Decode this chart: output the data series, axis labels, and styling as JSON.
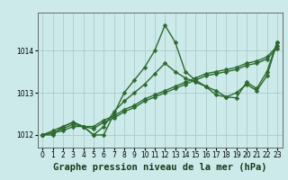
{
  "xlabel_label": "Graphe pression niveau de la mer (hPa)",
  "bg_color": "#cceaea",
  "grid_color": "#aacccc",
  "line_color": "#2d6a2d",
  "ylim": [
    1011.7,
    1014.9
  ],
  "yticks": [
    1012,
    1013,
    1014
  ],
  "xlim": [
    -0.5,
    23.5
  ],
  "xticks": [
    0,
    1,
    2,
    3,
    4,
    5,
    6,
    7,
    8,
    9,
    10,
    11,
    12,
    13,
    14,
    15,
    16,
    17,
    18,
    19,
    20,
    21,
    22,
    23
  ],
  "marker": "D",
  "markersize": 2.5,
  "linewidth": 1.0,
  "title_fontsize": 7.5,
  "tick_fontsize": 5.5,
  "s1": [
    1012.0,
    1012.0,
    1012.2,
    1012.3,
    1012.2,
    1012.0,
    1012.0,
    1012.5,
    1013.0,
    1013.3,
    1013.6,
    1014.0,
    1014.6,
    1014.2,
    1013.5,
    1013.3,
    1013.15,
    1013.05,
    1012.9,
    1012.88,
    1013.25,
    1013.1,
    1013.5,
    1014.2
  ],
  "s2": [
    1012.0,
    1012.1,
    1012.2,
    1012.3,
    1012.2,
    1012.0,
    1012.2,
    1012.55,
    1012.8,
    1013.0,
    1013.2,
    1013.45,
    1013.7,
    1013.5,
    1013.35,
    1013.25,
    1013.15,
    1012.95,
    1012.9,
    1013.0,
    1013.2,
    1013.05,
    1013.4,
    1014.2
  ],
  "s3": [
    1012.0,
    1012.05,
    1012.1,
    1012.2,
    1012.2,
    1012.15,
    1012.3,
    1012.4,
    1012.55,
    1012.65,
    1012.8,
    1012.9,
    1013.0,
    1013.1,
    1013.2,
    1013.3,
    1013.4,
    1013.45,
    1013.5,
    1013.55,
    1013.65,
    1013.7,
    1013.8,
    1014.05
  ],
  "s4": [
    1012.0,
    1012.05,
    1012.15,
    1012.25,
    1012.2,
    1012.2,
    1012.35,
    1012.45,
    1012.6,
    1012.7,
    1012.85,
    1012.95,
    1013.05,
    1013.15,
    1013.25,
    1013.35,
    1013.45,
    1013.5,
    1013.55,
    1013.6,
    1013.7,
    1013.75,
    1013.85,
    1014.1
  ]
}
